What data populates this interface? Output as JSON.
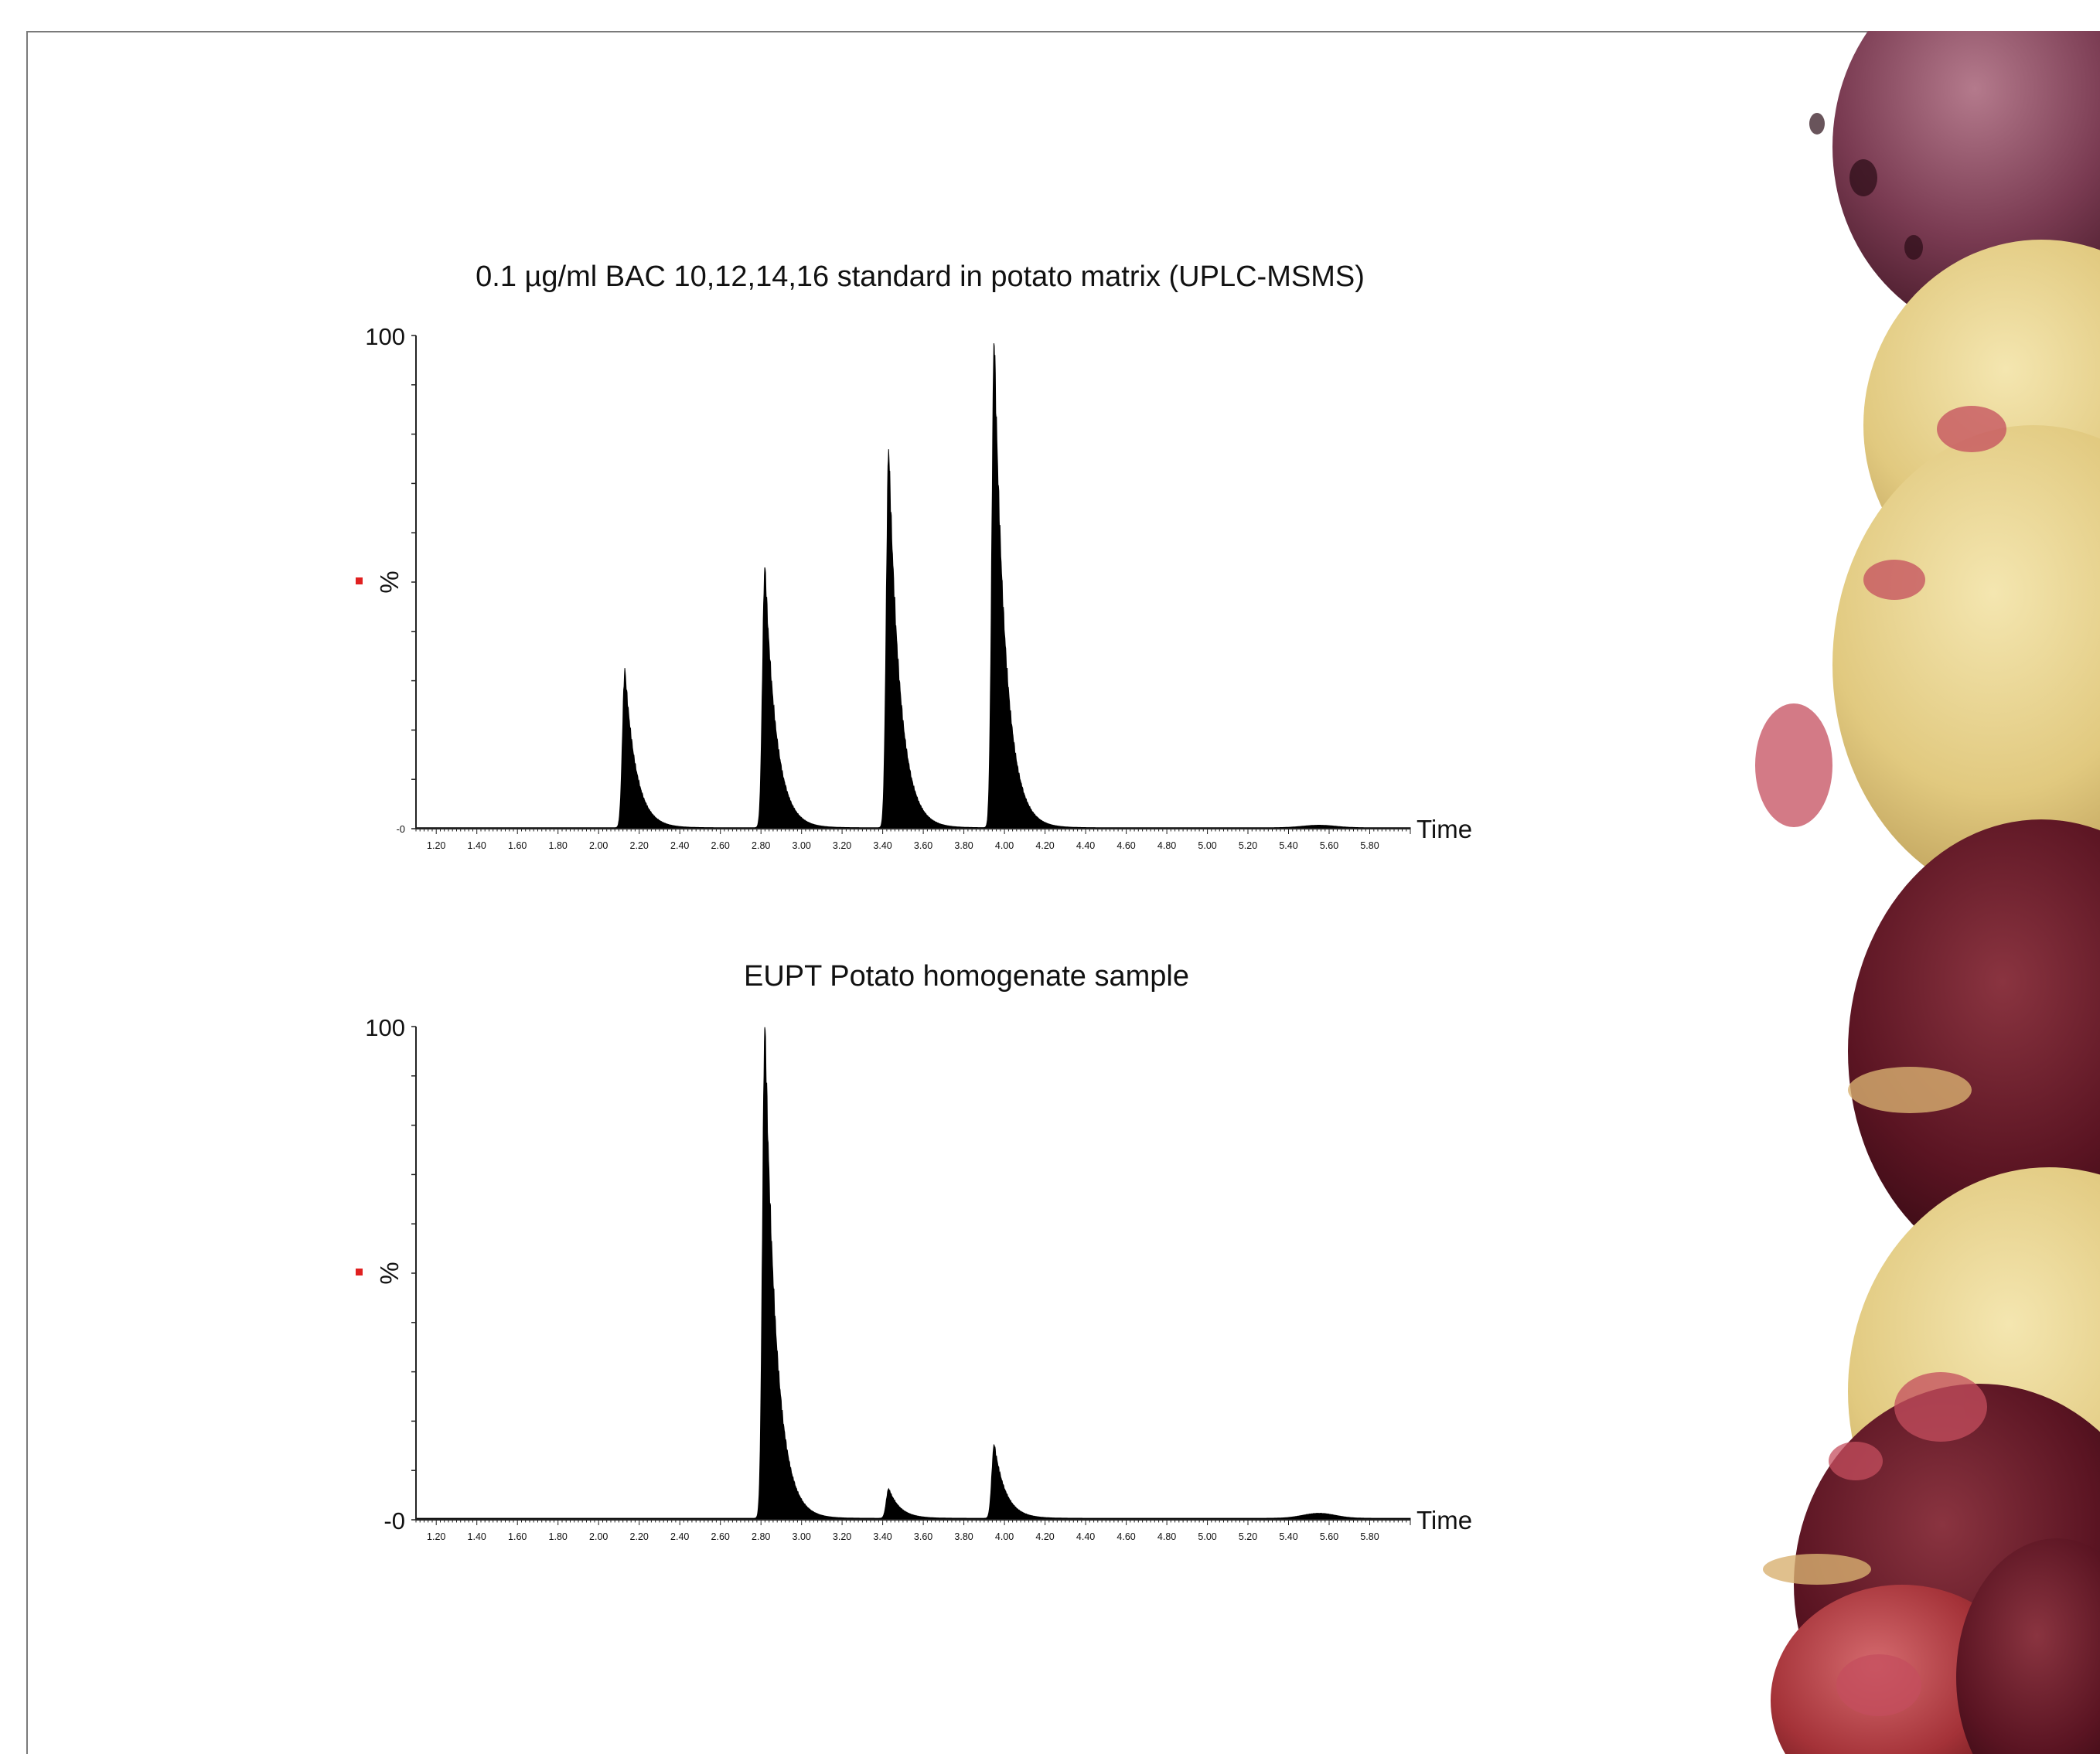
{
  "colors": {
    "marker": "#e02020",
    "trace": "#000000",
    "axis": "#222222"
  },
  "decoration": {
    "right_image": "potato-photo"
  },
  "chart_data": [
    {
      "type": "area",
      "title": "0.1 µg/ml BAC 10,12,14,16 standard in potato matrix (UPLC-MSMS)",
      "xlabel": "Time",
      "ylabel": "%",
      "xlim": [
        1.1,
        6.0
      ],
      "ylim": [
        0,
        100
      ],
      "y_tick_labels": [
        "100",
        "-0"
      ],
      "x_ticks": [
        1.2,
        1.4,
        1.6,
        1.8,
        2.0,
        2.2,
        2.4,
        2.6,
        2.8,
        3.0,
        3.2,
        3.4,
        3.6,
        3.8,
        4.0,
        4.2,
        4.4,
        4.6,
        4.8,
        5.0,
        5.2,
        5.4,
        5.6,
        5.8
      ],
      "x_tick_labels": [
        "1.20",
        "1.40",
        "1.60",
        "1.80",
        "2.00",
        "2.20",
        "2.40",
        "2.60",
        "2.80",
        "3.00",
        "3.20",
        "3.40",
        "3.60",
        "3.80",
        "4.00",
        "4.20",
        "4.40",
        "4.60",
        "4.80",
        "5.00",
        "5.20",
        "5.40",
        "5.60",
        "5.80"
      ],
      "peaks": [
        {
          "rt": 2.13,
          "height": 32
        },
        {
          "rt": 2.82,
          "height": 53
        },
        {
          "rt": 3.43,
          "height": 77
        },
        {
          "rt": 3.95,
          "height": 99
        }
      ],
      "baseline": 0.2,
      "noise_hump": {
        "center": 5.55,
        "height": 0.5
      }
    },
    {
      "type": "area",
      "title": "EUPT Potato homogenate sample",
      "xlabel": "Time",
      "ylabel": "%",
      "xlim": [
        1.1,
        6.0
      ],
      "ylim": [
        0,
        100
      ],
      "y_tick_labels": [
        "100",
        "-0"
      ],
      "x_ticks": [
        1.2,
        1.4,
        1.6,
        1.8,
        2.0,
        2.2,
        2.4,
        2.6,
        2.8,
        3.0,
        3.2,
        3.4,
        3.6,
        3.8,
        4.0,
        4.2,
        4.4,
        4.6,
        4.8,
        5.0,
        5.2,
        5.4,
        5.6,
        5.8
      ],
      "x_tick_labels": [
        "1.20",
        "1.40",
        "1.60",
        "1.80",
        "2.00",
        "2.20",
        "2.40",
        "2.60",
        "2.80",
        "3.00",
        "3.20",
        "3.40",
        "3.60",
        "3.80",
        "4.00",
        "4.20",
        "4.40",
        "4.60",
        "4.80",
        "5.00",
        "5.20",
        "5.40",
        "5.60",
        "5.80"
      ],
      "peaks": [
        {
          "rt": 2.82,
          "height": 100
        },
        {
          "rt": 3.43,
          "height": 6
        },
        {
          "rt": 3.95,
          "height": 15
        }
      ],
      "baseline": 0.3,
      "noise_hump": {
        "center": 5.55,
        "height": 1.0
      }
    }
  ]
}
